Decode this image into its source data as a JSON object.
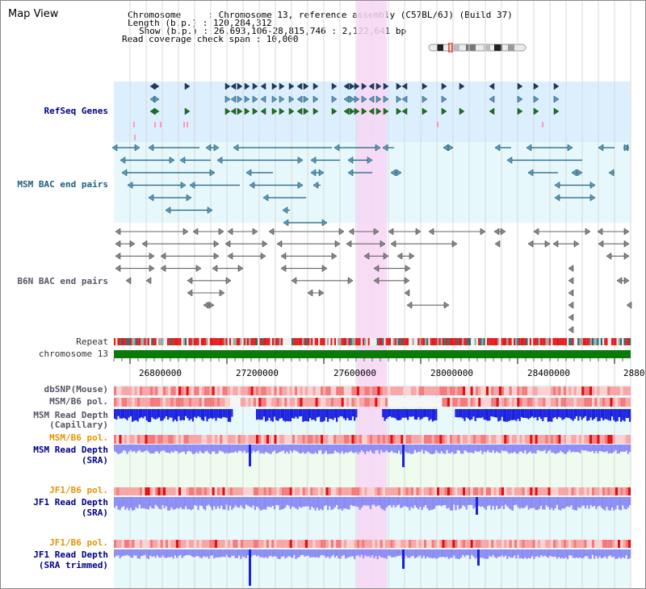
{
  "view": {
    "title": "Map View",
    "info": {
      "chromosome": "Chromosome     : Chromosome 13, reference assembly (C57BL/6J) (Build 37)",
      "length": "Length (b.p.) : 120,284,312",
      "show": "Show (b.p.) : 26,693,106-28,815,746 : 2,122,641 bp",
      "coverage": "Read coverage check span : 10,000"
    }
  },
  "tracks": {
    "refseq": "RefSeq Genes",
    "msm_bac": "MSM BAC end pairs",
    "b6n_bac": "B6N BAC end pairs",
    "repeat": "Repeat",
    "chromosome": "chromosome 13",
    "dbsnp": "dbSNP(Mouse)",
    "msm_b6_pol_1": "MSM/B6 pol.",
    "msm_depth_cap_1": "MSM Read Depth",
    "msm_depth_cap_2": "(Capillary)",
    "msm_b6_pol_2": "MSM/B6 pol.",
    "msm_depth_sra_1": "MSM Read Depth",
    "msm_depth_sra_2": "(SRA)",
    "jf1_b6_pol_1": "JF1/B6 pol.",
    "jf1_depth_sra_1": "JF1 Read Depth",
    "jf1_depth_sra_2": "(SRA)",
    "jf1_b6_pol_2": "JF1/B6 pol.",
    "jf1_depth_trim_1": "JF1 Read Depth",
    "jf1_depth_trim_2": "(SRA trimmed)"
  },
  "axis": {
    "ticks": [
      "26800000",
      "27200000",
      "27600000",
      "28000000",
      "28400000",
      "2880"
    ]
  },
  "colors": {
    "refseq_bg": "#dcefff",
    "msm_bac_bg": "#e6f8fb",
    "highlight": "#f7d6f4",
    "chromosome_bar": "#0b7a0b",
    "depth_dark": "#1a22e0",
    "depth_light": "#8c8cf4"
  },
  "icons": {
    "ideogram": "chromosome-ideogram-icon"
  }
}
